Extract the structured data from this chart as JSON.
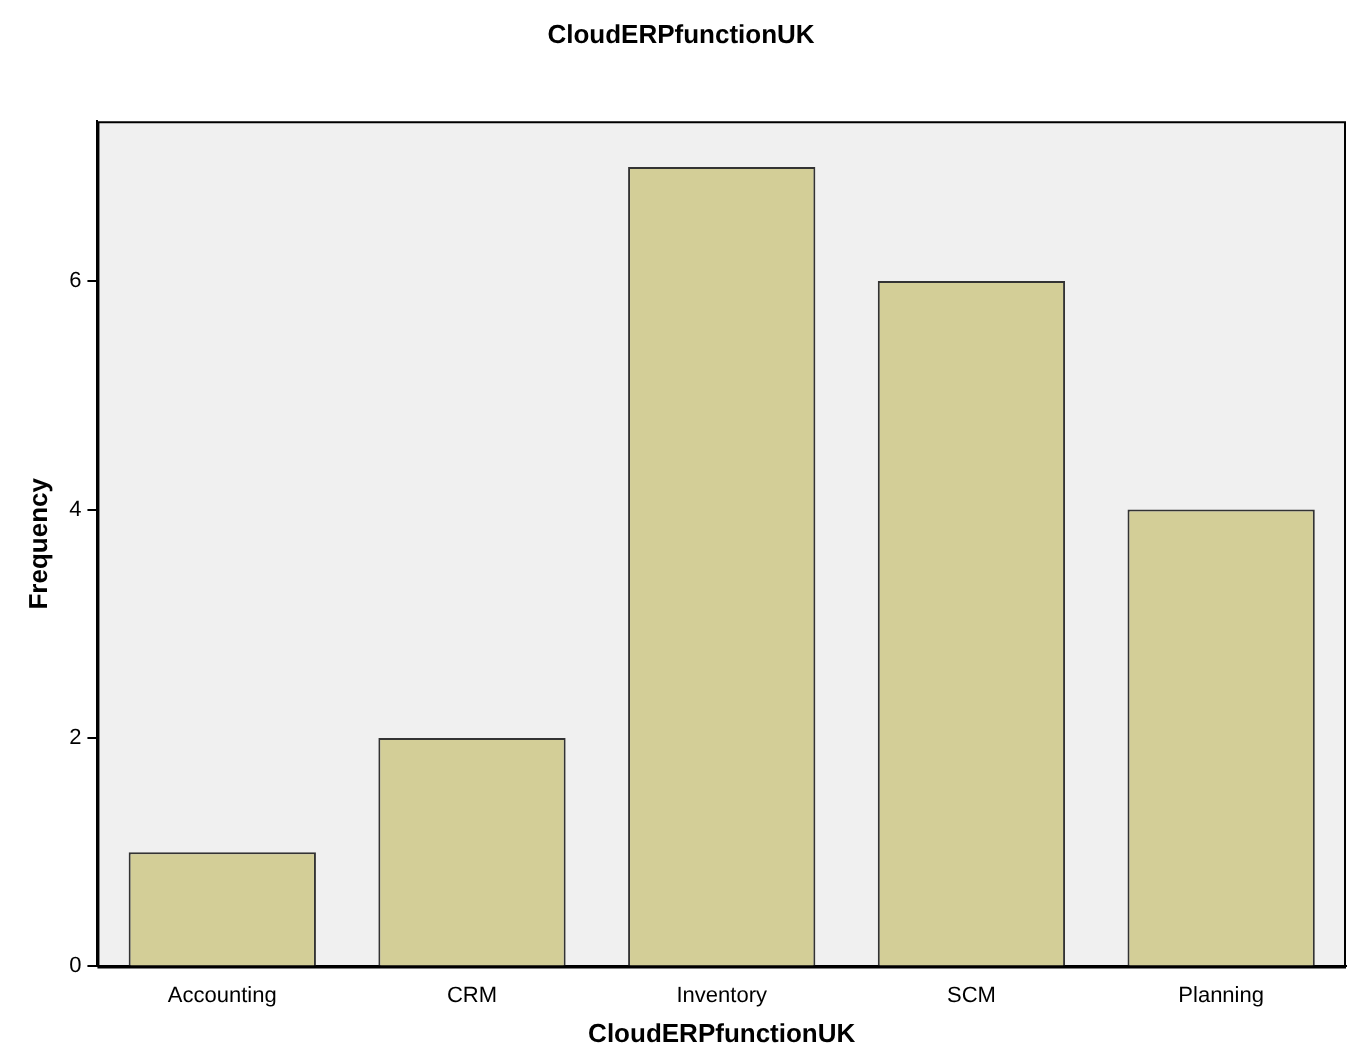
{
  "chart_data": {
    "type": "bar",
    "title": "CloudERPfunctionUK",
    "xlabel": "CloudERPfunctionUK",
    "ylabel": "Frequency",
    "categories": [
      "Accounting",
      "CRM",
      "Inventory",
      "SCM",
      "Planning"
    ],
    "values": [
      1,
      2,
      7,
      6,
      4
    ],
    "color": "#d3ce97",
    "ylim": [
      0,
      7.4
    ],
    "yticks": [
      0,
      2,
      4,
      6
    ],
    "grid": false,
    "legend": false
  }
}
